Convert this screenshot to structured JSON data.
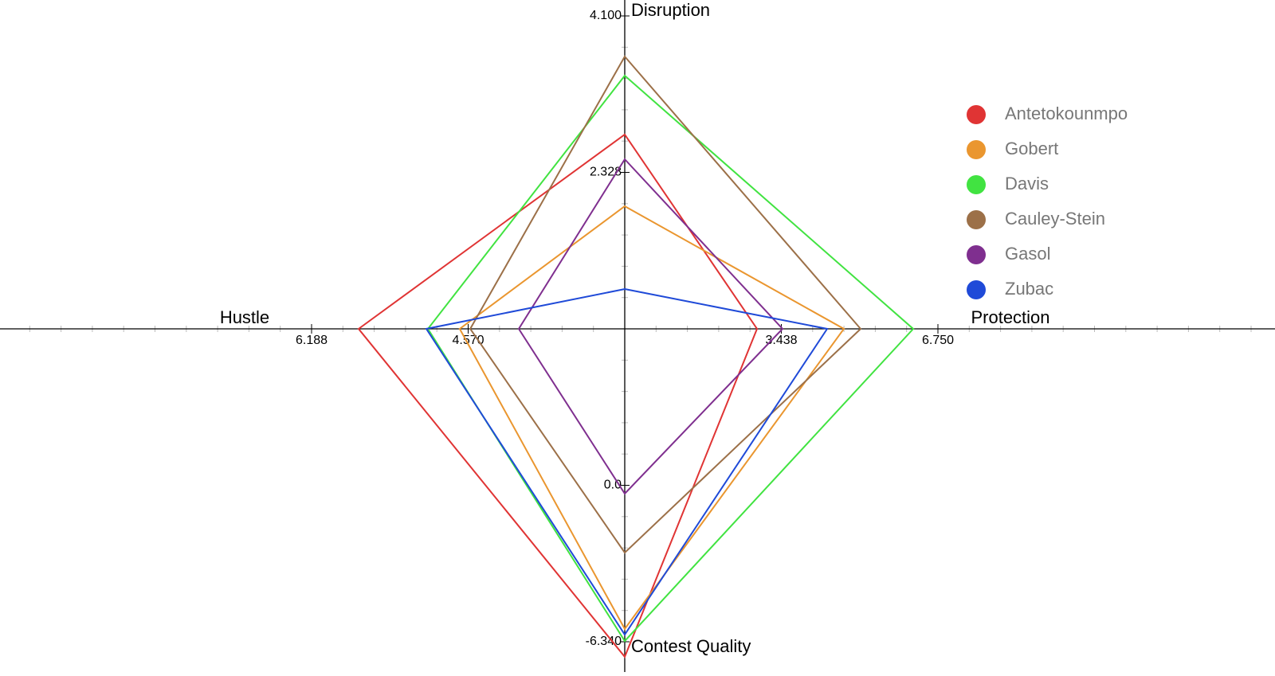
{
  "chart_data": {
    "type": "radar",
    "axes": [
      {
        "name": "Disruption",
        "lim": [
          0.556,
          4.1
        ],
        "ticks": [
          2.328,
          {
            "value": 4.1,
            "label": "4.100"
          }
        ]
      },
      {
        "name": "Protection",
        "lim": [
          0.126,
          6.75
        ],
        "ticks": [
          3.438,
          {
            "value": 6.75,
            "label": "6.750"
          }
        ]
      },
      {
        "name": "Contest Quality",
        "lim": [
          6.34,
          -6.34
        ],
        "ticks": [
          {
            "value": 0,
            "label": "0.0"
          },
          {
            "value": -6.34,
            "label": "-6.340"
          }
        ]
      },
      {
        "name": "Hustle",
        "lim": [
          2.952,
          6.188
        ],
        "ticks": [
          {
            "value": 4.57,
            "label": "4.570"
          },
          6.188
        ]
      }
    ],
    "series": [
      {
        "name": "Antetokounmpo",
        "color": "#e03434",
        "values": [
          2.757,
          2.924,
          -6.95,
          5.702
        ]
      },
      {
        "name": "Gobert",
        "color": "#ea962f",
        "values": [
          1.945,
          4.761,
          -5.82,
          4.657
        ]
      },
      {
        "name": "Davis",
        "color": "#41e341",
        "values": [
          3.424,
          6.227,
          -6.31,
          4.986
        ]
      },
      {
        "name": "Cauley-Stein",
        "color": "#9c7048",
        "values": [
          3.64,
          5.115,
          -2.73,
          4.549
        ]
      },
      {
        "name": "Gasol",
        "color": "#7f2f8f",
        "values": [
          2.477,
          3.463,
          -0.34,
          4.047
        ]
      },
      {
        "name": "Zubac",
        "color": "#1f4ad8",
        "values": [
          1.007,
          4.407,
          -6.05,
          5.002
        ]
      }
    ]
  }
}
